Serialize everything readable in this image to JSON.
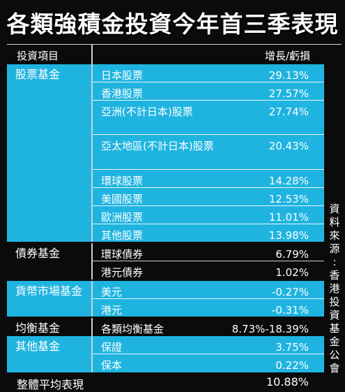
{
  "title": "各類強積金投資今年首三季表現",
  "header": {
    "category": "投資項目",
    "value": "增長/虧損"
  },
  "groups": [
    {
      "category": "股票基金",
      "color": "#1fb4e0",
      "rows": [
        {
          "name": "日本股票",
          "value": "29.13%"
        },
        {
          "name": "香港股票",
          "value": "27.57%"
        },
        {
          "name": "亞洲(不計日本)股票",
          "value": "27.74%"
        },
        {
          "name": "亞太地區(不計日本)股票",
          "value": "20.43%"
        },
        {
          "name": "環球股票",
          "value": "14.28%"
        },
        {
          "name": "美國股票",
          "value": "12.53%"
        },
        {
          "name": "歐洲股票",
          "value": "11.01%"
        },
        {
          "name": "其他股票",
          "value": "13.98%"
        }
      ]
    },
    {
      "category": "債券基金",
      "color": "#0b0b0b",
      "rows": [
        {
          "name": "環球債券",
          "value": "6.79%"
        },
        {
          "name": "港元債券",
          "value": "1.02%"
        }
      ]
    },
    {
      "category": "貨幣市場基金",
      "color": "#1fb4e0",
      "rows": [
        {
          "name": "美元",
          "value": "-0.27%"
        },
        {
          "name": "港元",
          "value": "-0.31%"
        }
      ]
    },
    {
      "category": "均衡基金",
      "color": "#0b0b0b",
      "rows": [
        {
          "name": "各類均衡基金",
          "value": "8.73%-18.39%"
        }
      ]
    },
    {
      "category": "其他基金",
      "color": "#1fb4e0",
      "rows": [
        {
          "name": "保證",
          "value": "3.75%"
        },
        {
          "name": "保本",
          "value": "0.22%"
        }
      ]
    }
  ],
  "total": {
    "label": "整體平均表現",
    "value": "10.88%"
  },
  "source": "資料來源:香港投資基金公會"
}
